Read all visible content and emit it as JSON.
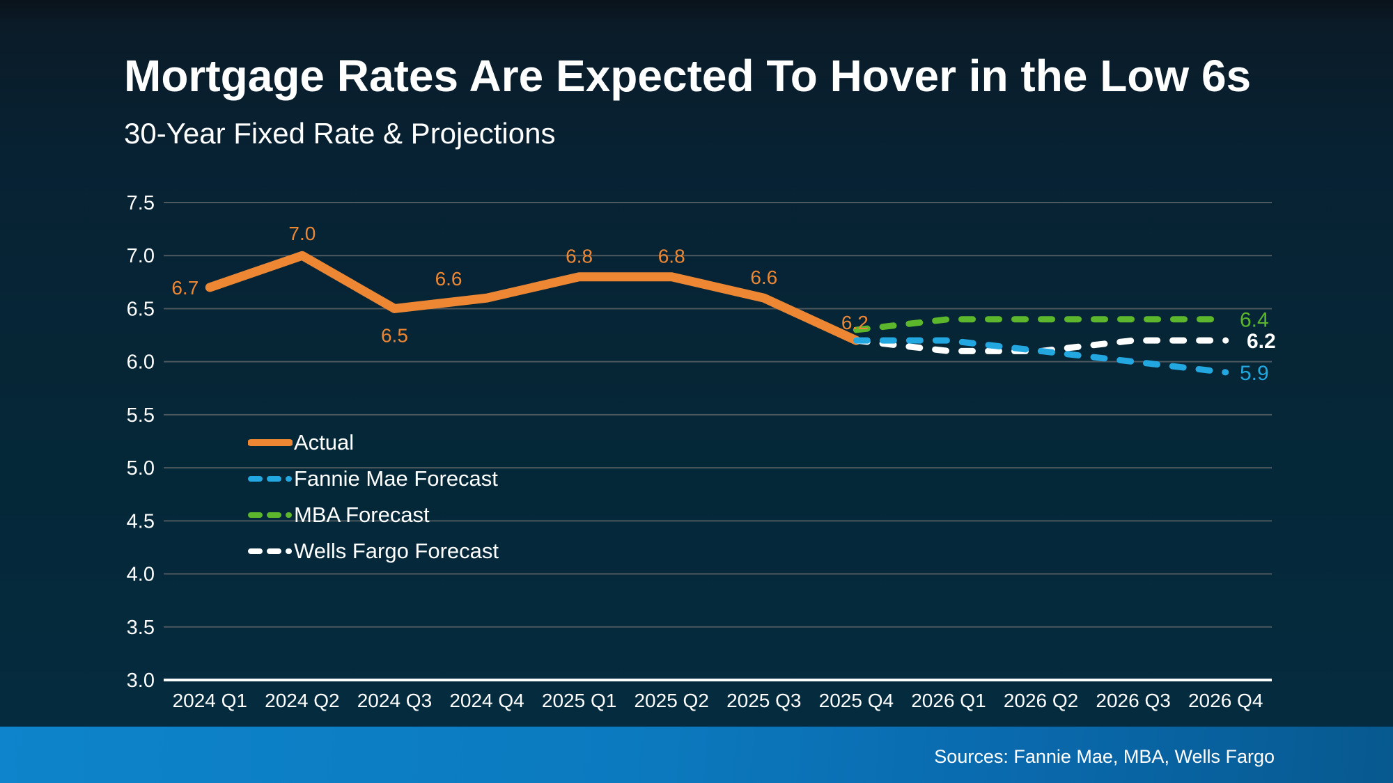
{
  "slide": {
    "title": "Mortgage Rates Are Expected To Hover in the Low 6s",
    "subtitle": "30-Year Fixed Rate & Projections",
    "footer": {
      "sources": "Sources: Fannie Mae, MBA, Wells Fargo",
      "bar_color_left": "#0d84cb",
      "bar_color_right": "#07598f"
    }
  },
  "chart_data": {
    "type": "line",
    "title": "30-Year Fixed Rate & Projections",
    "categories": [
      "2024 Q1",
      "2024 Q2",
      "2024 Q3",
      "2024 Q4",
      "2025 Q1",
      "2025 Q2",
      "2025 Q3",
      "2025 Q4",
      "2026 Q1",
      "2026 Q2",
      "2026 Q3",
      "2026 Q4"
    ],
    "ylim": [
      3.0,
      7.5
    ],
    "ytick_step": 0.5,
    "grid": true,
    "gridline_color": "#4e585f",
    "axis_line_color": "#ffffff",
    "text_color": "#ffffff",
    "series": [
      {
        "name": "Actual",
        "color": "#ED8733",
        "style": "solid",
        "start_index": 0,
        "values": [
          6.7,
          7.0,
          6.5,
          6.6,
          6.8,
          6.8,
          6.6,
          6.2
        ],
        "point_labels": true
      },
      {
        "name": "MBA Forecast",
        "color": "#5CB72C",
        "style": "dashed",
        "start_index": 7,
        "values": [
          6.3,
          6.4,
          6.4,
          6.4,
          6.4
        ],
        "end_label": "6.4"
      },
      {
        "name": "Wells Fargo Forecast",
        "color": "#FFFFFF",
        "style": "dashed",
        "start_index": 7,
        "values": [
          6.2,
          6.1,
          6.1,
          6.2,
          6.2
        ],
        "end_label": "6.2",
        "end_label_bold": true
      },
      {
        "name": "Fannie Mae Forecast",
        "color": "#22A7E0",
        "style": "dashed",
        "start_index": 7,
        "values": [
          6.2,
          6.2,
          6.1,
          6.0,
          5.9
        ],
        "end_label": "5.9"
      }
    ],
    "legend": {
      "position": "inside-left",
      "items": [
        {
          "label": "Actual",
          "series": "Actual"
        },
        {
          "label": "Fannie Mae Forecast",
          "series": "Fannie Mae Forecast"
        },
        {
          "label": "MBA Forecast",
          "series": "MBA Forecast"
        },
        {
          "label": "Wells Fargo Forecast",
          "series": "Wells Fargo Forecast"
        }
      ]
    }
  }
}
